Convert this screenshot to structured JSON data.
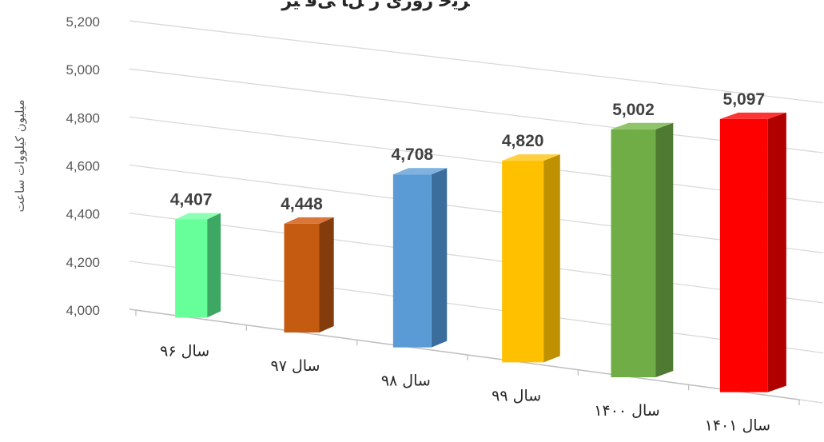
{
  "chart_data": {
    "type": "bar",
    "title": "ﺮﯾﺧ ﺭﻭﺭی ﺭ ﻞﺎ ﻰﻗ ﻴﺮ",
    "xlabel": "",
    "ylabel": "میلیون کیلووات ساعت",
    "categories": [
      "سال ۹۶",
      "سال ۹۷",
      "سال ۹۸",
      "سال ۹۹",
      "سال ۱۴۰۰",
      "سال ۱۴۰۱"
    ],
    "values": [
      4407,
      4448,
      4708,
      4820,
      5002,
      5097
    ],
    "value_labels": [
      "4,407",
      "4,448",
      "4,708",
      "4,820",
      "5,002",
      "5,097"
    ],
    "ylim": [
      4000,
      5200
    ],
    "yticks": [
      "4,000",
      "4,200",
      "4,400",
      "4,600",
      "4,800",
      "5,000",
      "5,200"
    ],
    "grid": true,
    "legend": "none",
    "bar_colors": [
      {
        "front": "#66ff99",
        "side": "#3da864",
        "top": "#8cffb4"
      },
      {
        "front": "#c55a11",
        "side": "#843c0c",
        "top": "#d9763a"
      },
      {
        "front": "#5b9bd5",
        "side": "#3b6e9c",
        "top": "#7fb2e0"
      },
      {
        "front": "#ffc000",
        "side": "#bf9000",
        "top": "#ffd040"
      },
      {
        "front": "#70ad47",
        "side": "#4e7a31",
        "top": "#8fc46a"
      },
      {
        "front": "#ff0000",
        "side": "#b00000",
        "top": "#ff3333"
      }
    ],
    "grid_color": "#d9d9d9"
  }
}
